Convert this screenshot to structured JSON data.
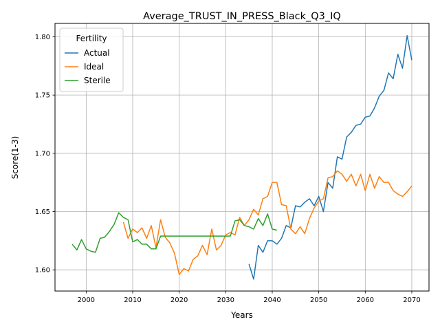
{
  "chart_data": {
    "type": "line",
    "title": "Average_TRUST_IN_PRESS_Black_Q3_IQ",
    "xlabel": "Years",
    "ylabel": "Score(1-3)",
    "xlim": [
      1993.3,
      2073.7
    ],
    "ylim": [
      1.5818,
      1.8115
    ],
    "xticks": [
      2000,
      2010,
      2020,
      2030,
      2040,
      2050,
      2060,
      2070
    ],
    "xtick_labels": [
      "2000",
      "2010",
      "2020",
      "2030",
      "2040",
      "2050",
      "2060",
      "2070"
    ],
    "yticks": [
      1.6,
      1.65,
      1.7,
      1.75,
      1.8
    ],
    "ytick_labels": [
      "1.60",
      "1.65",
      "1.70",
      "1.75",
      "1.80"
    ],
    "grid": true,
    "legend": {
      "title": "Fertility",
      "placement": "upper-left"
    },
    "series": [
      {
        "name": "Actual",
        "color": "#1f77b4",
        "x": [
          2035,
          2036,
          2037,
          2038,
          2039,
          2040,
          2041,
          2042,
          2043,
          2044,
          2045,
          2046,
          2047,
          2048,
          2049,
          2050,
          2051,
          2052,
          2053,
          2054,
          2055,
          2056,
          2057,
          2058,
          2059,
          2060,
          2061,
          2062,
          2063,
          2064,
          2065,
          2066,
          2067,
          2068,
          2069,
          2070
        ],
        "y": [
          1.605,
          1.592,
          1.621,
          1.615,
          1.625,
          1.625,
          1.622,
          1.627,
          1.638,
          1.636,
          1.655,
          1.654,
          1.658,
          1.661,
          1.655,
          1.663,
          1.65,
          1.675,
          1.67,
          1.697,
          1.695,
          1.714,
          1.718,
          1.724,
          1.725,
          1.731,
          1.732,
          1.739,
          1.749,
          1.754,
          1.769,
          1.764,
          1.785,
          1.773,
          1.801,
          1.78
        ]
      },
      {
        "name": "Ideal",
        "color": "#ff7f0e",
        "x": [
          2008,
          2009,
          2010,
          2011,
          2012,
          2013,
          2014,
          2015,
          2016,
          2017,
          2018,
          2019,
          2020,
          2021,
          2022,
          2023,
          2024,
          2025,
          2026,
          2027,
          2028,
          2029,
          2030,
          2031,
          2032,
          2033,
          2034,
          2035,
          2036,
          2037,
          2038,
          2039,
          2040,
          2041,
          2042,
          2043,
          2044,
          2045,
          2046,
          2047,
          2048,
          2049,
          2050,
          2051,
          2052,
          2053,
          2054,
          2055,
          2056,
          2057,
          2058,
          2059,
          2060,
          2061,
          2062,
          2063,
          2064,
          2065,
          2066,
          2067,
          2068,
          2069,
          2070
        ],
        "y": [
          1.641,
          1.627,
          1.635,
          1.632,
          1.636,
          1.627,
          1.638,
          1.619,
          1.643,
          1.628,
          1.623,
          1.614,
          1.596,
          1.601,
          1.599,
          1.609,
          1.612,
          1.621,
          1.613,
          1.635,
          1.617,
          1.621,
          1.63,
          1.632,
          1.63,
          1.645,
          1.638,
          1.643,
          1.652,
          1.647,
          1.661,
          1.663,
          1.675,
          1.675,
          1.656,
          1.655,
          1.635,
          1.631,
          1.637,
          1.631,
          1.644,
          1.653,
          1.659,
          1.661,
          1.679,
          1.68,
          1.685,
          1.682,
          1.676,
          1.682,
          1.672,
          1.682,
          1.668,
          1.682,
          1.67,
          1.68,
          1.675,
          1.675,
          1.668,
          1.665,
          1.663,
          1.667,
          1.672
        ]
      },
      {
        "name": "Sterile",
        "color": "#2ca02c",
        "x": [
          1997,
          1998,
          1999,
          2000,
          2001,
          2002,
          2003,
          2004,
          2005,
          2006,
          2007,
          2008,
          2009,
          2010,
          2011,
          2012,
          2013,
          2014,
          2015,
          2016,
          2017,
          2018,
          2019,
          2020,
          2021,
          2022,
          2023,
          2024,
          2025,
          2026,
          2027,
          2028,
          2029,
          2030,
          2031,
          2032,
          2033,
          2034,
          2035,
          2036,
          2037,
          2038,
          2039,
          2040,
          2041
        ],
        "y": [
          1.622,
          1.617,
          1.626,
          1.618,
          1.616,
          1.615,
          1.627,
          1.628,
          1.633,
          1.639,
          1.649,
          1.645,
          1.643,
          1.624,
          1.626,
          1.622,
          1.622,
          1.618,
          1.618,
          1.629,
          1.629,
          1.629,
          1.629,
          1.629,
          1.629,
          1.629,
          1.629,
          1.629,
          1.629,
          1.629,
          1.629,
          1.629,
          1.629,
          1.629,
          1.629,
          1.642,
          1.643,
          1.638,
          1.637,
          1.635,
          1.644,
          1.638,
          1.648,
          1.635,
          1.634
        ]
      }
    ]
  }
}
